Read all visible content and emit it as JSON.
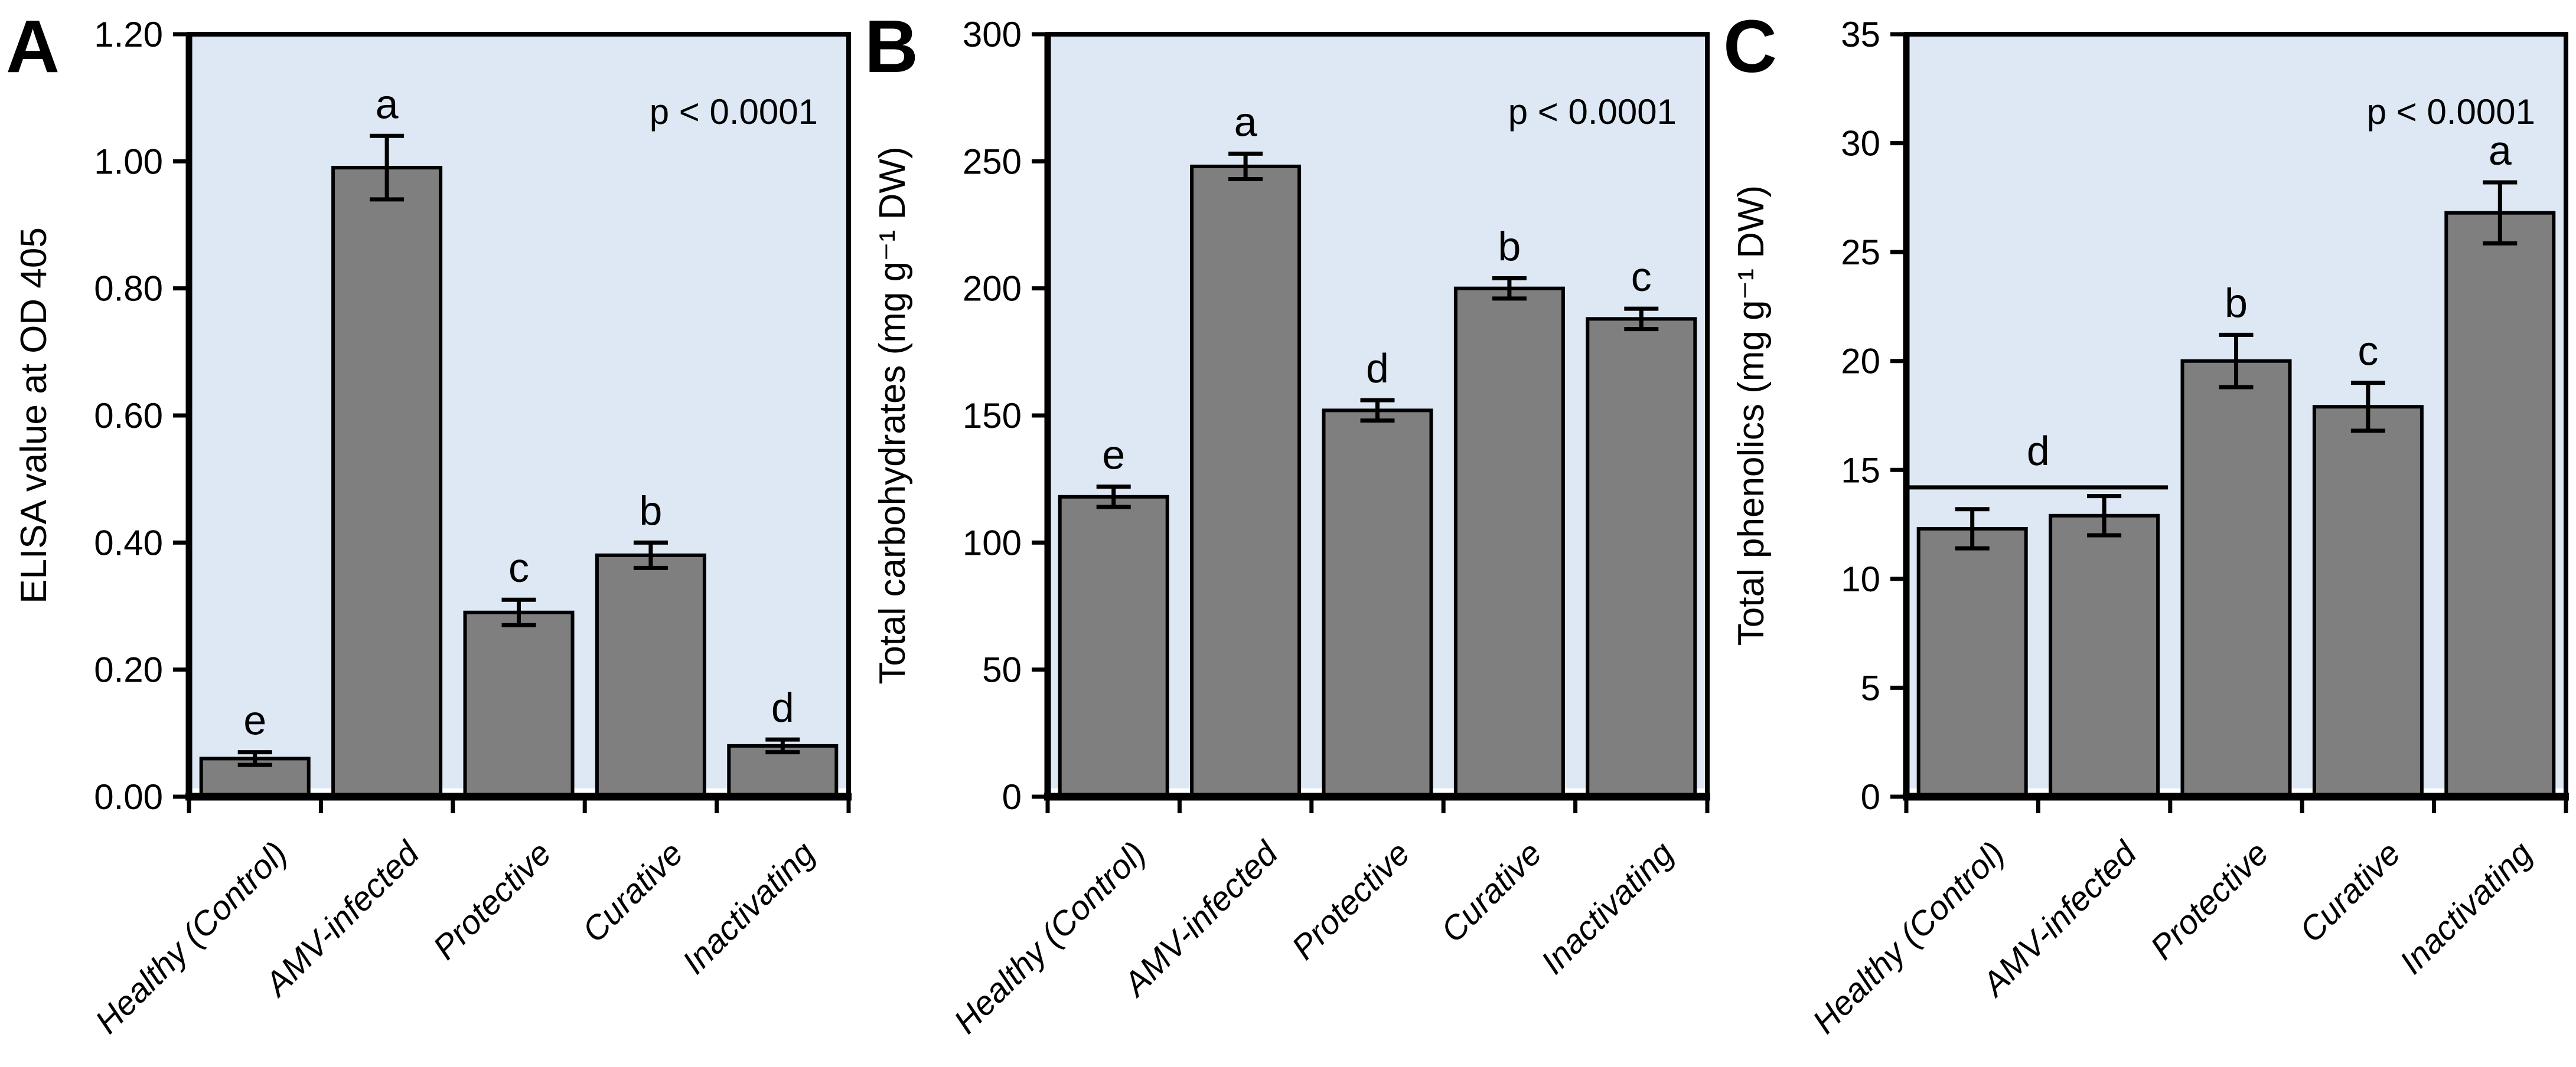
{
  "figure": {
    "background_color": "#ffffff",
    "plot_background_color": "#dde8f4",
    "bar_fill_color": "#7f7f7f",
    "bar_stroke_color": "#000000",
    "axis_color": "#000000",
    "text_color": "#000000"
  },
  "categories": [
    "Healthy (Control)",
    "AMV-infected",
    "Protective",
    "Curative",
    "Inactivating"
  ],
  "chart_data": [
    {
      "type": "bar",
      "panel_letter": "A",
      "title": "",
      "xlabel": "",
      "ylabel": "ELISA value at OD 405",
      "ylim": [
        0,
        1.2
      ],
      "ytick_step": 0.2,
      "ytick_decimals": 2,
      "grid": false,
      "legend": false,
      "annotation": "p < 0.0001",
      "categories": [
        "Healthy (Control)",
        "AMV-infected",
        "Protective",
        "Curative",
        "Inactivating"
      ],
      "values": [
        0.06,
        0.99,
        0.29,
        0.38,
        0.08
      ],
      "errors": [
        0.01,
        0.05,
        0.02,
        0.02,
        0.01
      ],
      "sig_letters": [
        "e",
        "a",
        "c",
        "b",
        "d"
      ],
      "group_bracket": null
    },
    {
      "type": "bar",
      "panel_letter": "B",
      "title": "",
      "xlabel": "",
      "ylabel": "Total carbohydrates (mg g⁻¹ DW)",
      "ylim": [
        0,
        300
      ],
      "ytick_step": 50,
      "ytick_decimals": 0,
      "grid": false,
      "legend": false,
      "annotation": "p < 0.0001",
      "categories": [
        "Healthy (Control)",
        "AMV-infected",
        "Protective",
        "Curative",
        "Inactivating"
      ],
      "values": [
        118,
        248,
        152,
        200,
        188
      ],
      "errors": [
        4,
        5,
        4,
        4,
        4
      ],
      "sig_letters": [
        "e",
        "a",
        "d",
        "b",
        "c"
      ],
      "group_bracket": null
    },
    {
      "type": "bar",
      "panel_letter": "C",
      "title": "",
      "xlabel": "",
      "ylabel": "Total phenolics (mg g⁻¹ DW)",
      "ylim": [
        0,
        35
      ],
      "ytick_step": 5,
      "ytick_decimals": 0,
      "grid": false,
      "legend": false,
      "annotation": "p < 0.0001",
      "categories": [
        "Healthy (Control)",
        "AMV-infected",
        "Protective",
        "Curative",
        "Inactivating"
      ],
      "values": [
        12.3,
        12.9,
        20.0,
        17.9,
        26.8
      ],
      "errors": [
        0.9,
        0.9,
        1.2,
        1.1,
        1.4
      ],
      "sig_letters": [
        null,
        null,
        "b",
        "c",
        "a"
      ],
      "group_bracket": {
        "from_index": 0,
        "to_index": 1,
        "letter": "d",
        "y_value": 14.2
      }
    }
  ]
}
